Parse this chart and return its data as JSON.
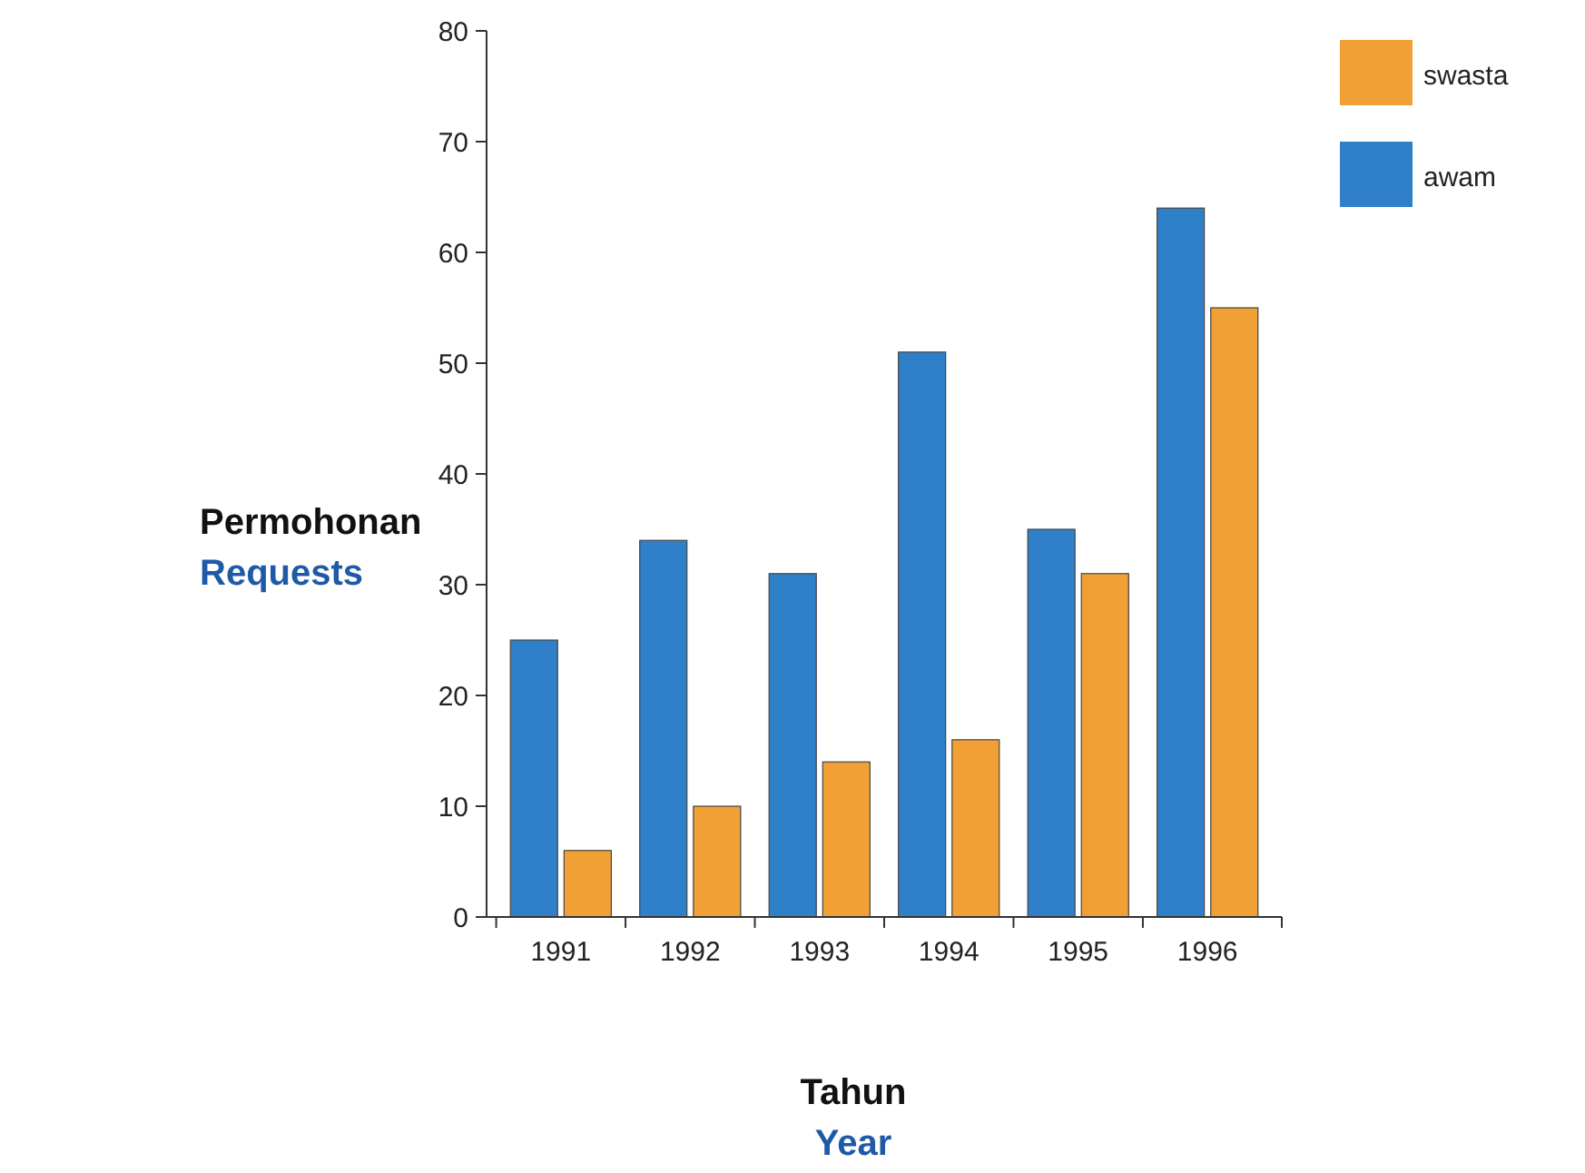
{
  "chart_data": {
    "type": "bar",
    "xlabel": "Tahun\nYear",
    "ylabel": "Permohonan\nRequests",
    "categories": [
      "1991",
      "1992",
      "1993",
      "1994",
      "1995",
      "1996"
    ],
    "series": [
      {
        "name": "awam",
        "color": "#2f80c8",
        "values": [
          25,
          34,
          31,
          51,
          35,
          64
        ]
      },
      {
        "name": "swasta",
        "color": "#f0a035",
        "values": [
          6,
          10,
          14,
          16,
          31,
          55
        ]
      }
    ],
    "ylim": [
      0,
      80
    ],
    "yticks": [
      0,
      10,
      20,
      30,
      40,
      50,
      60,
      70,
      80
    ],
    "grid": false,
    "legend": "top right"
  }
}
